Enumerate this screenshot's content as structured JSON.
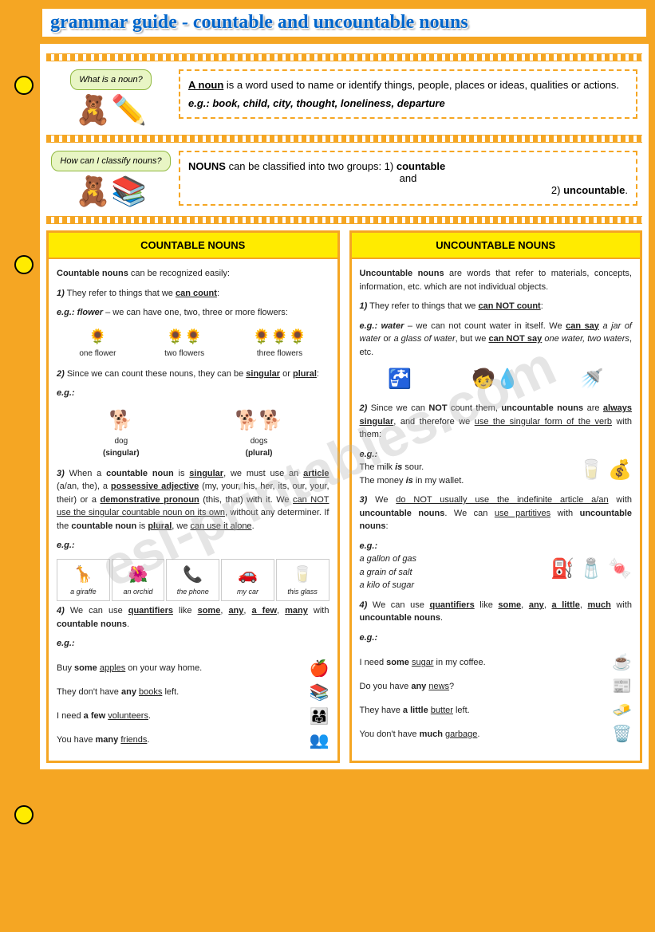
{
  "title": "grammar guide - countable and uncountable nouns",
  "watermark": "esl-printables.com",
  "intro1": {
    "bubble": "What is a noun?",
    "bear_emoji": "🧸✏️",
    "noun_label": "A noun",
    "definition": " is a word used to name or identify things, people, places or ideas, qualities or actions.",
    "eg_label": "e.g.: ",
    "eg_text": "book, child, city, thought, loneliness, departure"
  },
  "intro2": {
    "bubble": "How can I classify nouns?",
    "bear_emoji": "🧸📚",
    "nouns_label": "NOUNS",
    "text1": " can be classified into two groups: 1) ",
    "countable": "countable",
    "text2": "and",
    "text3": "2) ",
    "uncountable": "uncountable",
    "text4": "."
  },
  "countable": {
    "header": "COUNTABLE NOUNS",
    "intro": "Countable nouns",
    "intro_text": " can be recognized easily:",
    "r1_num": "1)",
    "r1_text": " They refer to things that we ",
    "r1_u": "can count",
    "r1_end": ":",
    "r1_eg": "e.g.: flower",
    "r1_eg_text": " – we can have one, two, three or more flowers:",
    "flowers": [
      {
        "pic": "🌻",
        "label": "one flower"
      },
      {
        "pic": "🌻🌻",
        "label": "two flowers"
      },
      {
        "pic": "🌻🌻🌻",
        "label": "three flowers"
      }
    ],
    "r2_num": "2)",
    "r2_text": " Since we can count these nouns, they can be ",
    "r2_u1": "singular",
    "r2_or": " or ",
    "r2_u2": "plural",
    "r2_end": ":",
    "r2_eg": "e.g.:",
    "dogs": [
      {
        "pic": "🐕",
        "label": "dog",
        "form": "(singular)"
      },
      {
        "pic": "🐕🐕",
        "label": "dogs",
        "form": "(plural)"
      }
    ],
    "r3_num": "3)",
    "r3_p1": " When a ",
    "r3_b1": "countable noun",
    "r3_p2": " is ",
    "r3_u1": "singular",
    "r3_p3": ", we must use an ",
    "r3_u2": "article",
    "r3_p4": " (a/an, the), a ",
    "r3_u3": "possessive adjective",
    "r3_p5": " (my, your, his, her, its, our, your, their) or a ",
    "r3_u4": "demonstrative pronoun",
    "r3_p6": " (this, that) with it. We ",
    "r3_u5": "can NOT use the singular countable noun on its own",
    "r3_p7": ", without any determiner. If the ",
    "r3_b2": "countable noun",
    "r3_p8": " is ",
    "r3_u6": "plural",
    "r3_p9": ", we ",
    "r3_u7": "can use it alone",
    "r3_p10": ".",
    "r3_eg": "e.g.:",
    "boxes": [
      {
        "pic": "🦒",
        "label": "a giraffe"
      },
      {
        "pic": "🌺",
        "label": "an orchid"
      },
      {
        "pic": "📞",
        "label": "the phone"
      },
      {
        "pic": "🚗",
        "label": "my car"
      },
      {
        "pic": "🥛",
        "label": "this glass"
      }
    ],
    "r4_num": "4)",
    "r4_p1": " We can use ",
    "r4_u1": "quantifiers",
    "r4_p2": " like ",
    "r4_u2": "some",
    "r4_c": ", ",
    "r4_u3": "any",
    "r4_u4": "a few",
    "r4_u5": "many",
    "r4_p3": " with ",
    "r4_b": "countable nouns",
    "r4_p4": ".",
    "r4_eg": "e.g.:",
    "r4_lines": [
      {
        "pre": "Buy ",
        "b": "some",
        "u": "apples",
        "post": " on your way home.",
        "pic": "🍎"
      },
      {
        "pre": "They don't have ",
        "b": "any",
        "u": "books",
        "post": " left.",
        "pic": "📚"
      },
      {
        "pre": "I need ",
        "b": "a few",
        "u": "volunteers",
        "post": ".",
        "pic": "👨‍👩‍👧"
      },
      {
        "pre": "You have ",
        "b": "many",
        "u": "friends",
        "post": ".",
        "pic": "👥"
      }
    ]
  },
  "uncountable": {
    "header": "UNCOUNTABLE NOUNS",
    "intro": "Uncountable nouns",
    "intro_text": " are words that refer to materials, concepts, information, etc. which are not individual objects.",
    "r1_num": "1)",
    "r1_text": " They refer to things that we ",
    "r1_u": "can NOT count",
    "r1_end": ":",
    "r1_eg": "e.g.: water",
    "r1_eg_p1": " – we can not count water in itself. We ",
    "r1_eg_u1": "can say",
    "r1_eg_i1": " a jar of water",
    "r1_eg_p2": " or ",
    "r1_eg_i2": "a glass of water",
    "r1_eg_p3": ", but we ",
    "r1_eg_u2": "can NOT say",
    "r1_eg_i3": " one water, two waters",
    "r1_eg_p4": ", etc.",
    "water_pics": [
      "🚰",
      "🧒💧",
      "🚿"
    ],
    "r2_num": "2)",
    "r2_p1": " Since we can ",
    "r2_b1": "NOT",
    "r2_p2": " count them, ",
    "r2_b2": "uncountable nouns",
    "r2_p3": " are ",
    "r2_u1": "always singular",
    "r2_p4": ", and therefore we ",
    "r2_u2": "use the singular form of the verb",
    "r2_p5": " with them:",
    "r2_eg": "e.g.:",
    "r2_l1a": "The milk ",
    "r2_l1b": "is",
    "r2_l1c": " sour.",
    "r2_l2a": "The money ",
    "r2_l2b": "is",
    "r2_l2c": " in my wallet.",
    "r2_pics": [
      "🥛",
      "💰"
    ],
    "r3_num": "3)",
    "r3_p1": " We ",
    "r3_u1": "do NOT usually use the indefinite article a/an",
    "r3_p2": " with ",
    "r3_b1": "uncountable nouns",
    "r3_p3": ". We can ",
    "r3_u2": "use partitives",
    "r3_p4": " with ",
    "r3_b2": "uncountable nouns",
    "r3_p5": ":",
    "r3_eg": "e.g.:",
    "r3_lines": [
      "a gallon of gas",
      "a grain of salt",
      "a kilo of sugar"
    ],
    "r3_pics": [
      "⛽",
      "🧂",
      "🍬"
    ],
    "r4_num": "4)",
    "r4_p1": " We can use ",
    "r4_u1": "quantifiers",
    "r4_p2": " like ",
    "r4_u2": "some",
    "r4_c": ", ",
    "r4_u3": "any",
    "r4_u4": "a little",
    "r4_u5": "much",
    "r4_p3": " with ",
    "r4_b": "uncountable nouns",
    "r4_p4": ".",
    "r4_eg": "e.g.:",
    "r4_lines": [
      {
        "pre": "I need ",
        "b": "some",
        "u": "sugar",
        "post": " in my coffee.",
        "pic": "☕"
      },
      {
        "pre": "Do you have ",
        "b": "any",
        "u": "news",
        "post": "?",
        "pic": "📰"
      },
      {
        "pre": "They have ",
        "b": "a little",
        "u": "butter",
        "post": " left.",
        "pic": "🧈"
      },
      {
        "pre": "You don't have ",
        "b": "much",
        "u": "garbage",
        "post": ".",
        "pic": "🗑️"
      }
    ]
  }
}
